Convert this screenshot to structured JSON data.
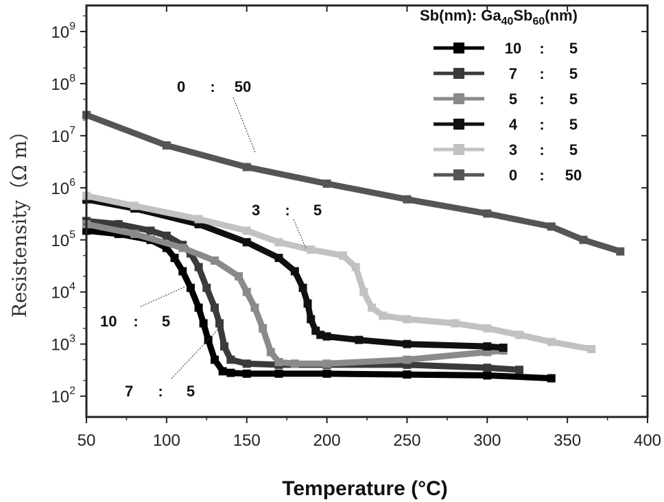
{
  "chart_data": {
    "type": "line",
    "xlabel": "Temperature (°C)",
    "ylabel": "Resistensity（Ω m）",
    "xlim": [
      50,
      400
    ],
    "ylim_log10": [
      1.6,
      9.5
    ],
    "y_scale": "log",
    "x_ticks": [
      50,
      100,
      150,
      200,
      250,
      300,
      350,
      400
    ],
    "x_tick_labels": [
      "50",
      "100",
      "150",
      "200",
      "250",
      "300",
      "350",
      "400"
    ],
    "y_tick_exponents": [
      2,
      3,
      4,
      5,
      6,
      7,
      8,
      9
    ],
    "y_tick_base": "10",
    "legend_title_prefix": "Sb(nm): Ga",
    "legend_title_sub1": "40",
    "legend_title_mid": "Sb",
    "legend_title_sub2": "60",
    "legend_title_suffix": "(nm)",
    "legend_position": "top-right",
    "series": [
      {
        "name_a": "10",
        "name_b": "5",
        "color": "#000000",
        "marker": "square",
        "x": [
          50,
          70,
          90,
          100,
          105,
          110,
          115,
          120,
          123,
          126,
          130,
          135,
          140,
          150,
          170,
          200,
          250,
          300,
          340
        ],
        "y": [
          150000,
          130000,
          100000,
          70000,
          45000,
          25000,
          12000,
          5000,
          2500,
          1200,
          500,
          300,
          280,
          270,
          270,
          270,
          260,
          250,
          220
        ]
      },
      {
        "name_a": "7",
        "name_b": "5",
        "color": "#3a3a3a",
        "marker": "square",
        "x": [
          50,
          70,
          90,
          100,
          110,
          115,
          120,
          125,
          130,
          133,
          136,
          140,
          150,
          170,
          200,
          250,
          300,
          320
        ],
        "y": [
          230000,
          200000,
          150000,
          120000,
          80000,
          55000,
          30000,
          12000,
          5000,
          2500,
          900,
          500,
          420,
          400,
          400,
          400,
          350,
          320
        ]
      },
      {
        "name_a": "5",
        "name_b": "5",
        "color": "#8a8a8a",
        "marker": "square",
        "x": [
          50,
          80,
          110,
          130,
          145,
          150,
          155,
          160,
          165,
          170,
          180,
          200,
          250,
          300,
          310
        ],
        "y": [
          200000,
          130000,
          70000,
          40000,
          20000,
          10000,
          5000,
          2000,
          700,
          450,
          420,
          420,
          500,
          700,
          750
        ]
      },
      {
        "name_a": "4",
        "name_b": "5",
        "color": "#101010",
        "marker": "square",
        "x": [
          50,
          80,
          120,
          150,
          170,
          180,
          185,
          188,
          190,
          193,
          196,
          200,
          220,
          250,
          300,
          310
        ],
        "y": [
          600000,
          400000,
          200000,
          90000,
          45000,
          25000,
          12000,
          6000,
          3000,
          1800,
          1500,
          1400,
          1200,
          1000,
          900,
          850
        ]
      },
      {
        "name_a": "3",
        "name_b": "5",
        "color": "#c2c2c2",
        "marker": "square",
        "x": [
          50,
          80,
          120,
          150,
          170,
          190,
          210,
          218,
          223,
          228,
          235,
          250,
          280,
          300,
          320,
          340,
          365
        ],
        "y": [
          700000,
          450000,
          250000,
          150000,
          90000,
          65000,
          50000,
          30000,
          10000,
          5000,
          3500,
          3000,
          2500,
          2000,
          1500,
          1100,
          800
        ]
      },
      {
        "name_a": "0",
        "name_b": "50",
        "color": "#555555",
        "marker": "square",
        "x": [
          50,
          100,
          150,
          200,
          250,
          300,
          340,
          360,
          383
        ],
        "y": [
          25000000,
          6500000,
          2500000,
          1200000,
          600000,
          320000,
          180000,
          100000,
          60000
        ]
      }
    ],
    "annotations": [
      {
        "a": "0",
        "b": "50"
      },
      {
        "a": "3",
        "b": "5"
      },
      {
        "a": "10",
        "b": "5"
      },
      {
        "a": "7",
        "b": "5"
      }
    ],
    "axis_color": "#222222"
  }
}
